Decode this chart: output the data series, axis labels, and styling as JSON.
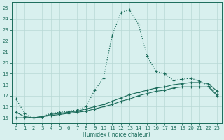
{
  "xlabel": "Humidex (Indice chaleur)",
  "xlim": [
    -0.5,
    23.5
  ],
  "ylim": [
    14.5,
    25.5
  ],
  "xticks": [
    0,
    1,
    2,
    3,
    4,
    5,
    6,
    7,
    8,
    9,
    10,
    11,
    12,
    13,
    14,
    15,
    16,
    17,
    18,
    19,
    20,
    21,
    22,
    23
  ],
  "yticks": [
    15,
    16,
    17,
    18,
    19,
    20,
    21,
    22,
    23,
    24,
    25
  ],
  "bg_color": "#d8f0ee",
  "grid_color": "#b8d8d5",
  "line_color": "#1a6b5a",
  "curve1_x": [
    0,
    1,
    2,
    3,
    4,
    5,
    6,
    7,
    8,
    9,
    10,
    11,
    12,
    13,
    14,
    15,
    16,
    17,
    18,
    19,
    20,
    21,
    22,
    23
  ],
  "curve1_y": [
    16.7,
    15.4,
    15.0,
    15.1,
    15.4,
    15.5,
    15.6,
    15.7,
    16.0,
    17.5,
    18.6,
    22.5,
    24.6,
    24.8,
    23.5,
    20.6,
    19.2,
    19.0,
    18.4,
    18.5,
    18.6,
    18.3,
    17.9,
    17.1
  ],
  "curve2_x": [
    0,
    1,
    2,
    3,
    4,
    5,
    6,
    7,
    8,
    9,
    10,
    11,
    12,
    13,
    14,
    15,
    16,
    17,
    18,
    19,
    20,
    21,
    22,
    23
  ],
  "curve2_y": [
    15.5,
    15.1,
    15.0,
    15.1,
    15.3,
    15.4,
    15.5,
    15.6,
    15.8,
    16.0,
    16.2,
    16.5,
    16.8,
    17.1,
    17.3,
    17.5,
    17.7,
    17.8,
    18.0,
    18.1,
    18.2,
    18.2,
    18.1,
    17.4
  ],
  "curve3_x": [
    0,
    1,
    2,
    3,
    4,
    5,
    6,
    7,
    8,
    9,
    10,
    11,
    12,
    13,
    14,
    15,
    16,
    17,
    18,
    19,
    20,
    21,
    22,
    23
  ],
  "curve3_y": [
    15.0,
    15.0,
    15.0,
    15.1,
    15.2,
    15.3,
    15.4,
    15.5,
    15.6,
    15.8,
    16.0,
    16.2,
    16.5,
    16.7,
    17.0,
    17.2,
    17.4,
    17.5,
    17.7,
    17.8,
    17.8,
    17.8,
    17.8,
    17.0
  ]
}
